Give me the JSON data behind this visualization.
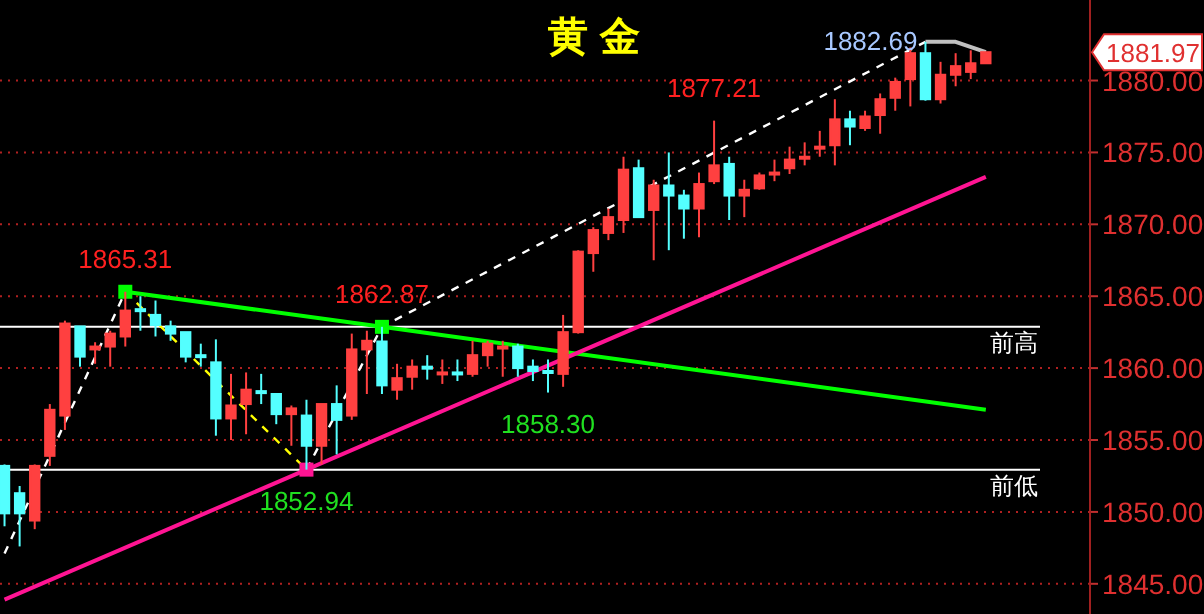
{
  "chart_data": {
    "type": "candlestick",
    "title": "黄金",
    "categories": [
      null,
      null,
      null,
      null,
      null,
      null,
      null,
      null,
      null,
      null,
      null,
      null,
      null,
      null,
      null,
      null,
      null,
      null,
      null,
      null,
      null,
      null,
      null,
      null,
      null,
      null,
      null,
      null,
      null,
      null,
      null,
      null,
      null,
      null,
      null,
      null,
      null,
      null,
      null,
      null,
      null,
      null,
      null,
      null,
      null,
      null,
      null,
      null,
      null,
      null,
      null,
      null,
      null,
      null,
      null,
      null,
      null,
      null,
      null,
      null,
      null,
      null,
      null,
      null,
      null,
      null
    ],
    "ohlc": [
      [
        1853.2,
        1853.3,
        1849.0,
        1849.9
      ],
      [
        1851.3,
        1851.8,
        1847.6,
        1849.9
      ],
      [
        1849.4,
        1853.3,
        1848.8,
        1853.2
      ],
      [
        1853.9,
        1857.5,
        1853.2,
        1857.1
      ],
      [
        1856.7,
        1863.3,
        1855.7,
        1863.1
      ],
      [
        1862.9,
        1862.9,
        1860.1,
        1860.8
      ],
      [
        1861.3,
        1861.8,
        1860.3,
        1861.5
      ],
      [
        1861.5,
        1862.6,
        1860.1,
        1862.4
      ],
      [
        1862.2,
        1865.31,
        1861.5,
        1864.0
      ],
      [
        1864.1,
        1865.0,
        1862.6,
        1864.0
      ],
      [
        1863.7,
        1864.7,
        1862.2,
        1863.0
      ],
      [
        1862.9,
        1863.3,
        1861.9,
        1862.4
      ],
      [
        1862.5,
        1862.5,
        1860.4,
        1860.8
      ],
      [
        1860.9,
        1861.7,
        1860.1,
        1860.8
      ],
      [
        1860.4,
        1862.0,
        1855.3,
        1856.5
      ],
      [
        1856.5,
        1859.6,
        1855.0,
        1857.4
      ],
      [
        1857.5,
        1859.7,
        1855.4,
        1858.5
      ],
      [
        1858.4,
        1859.6,
        1857.5,
        1858.3
      ],
      [
        1858.2,
        1858.2,
        1856.1,
        1856.8
      ],
      [
        1856.8,
        1857.4,
        1854.6,
        1857.2
      ],
      [
        1856.7,
        1857.8,
        1852.94,
        1854.6
      ],
      [
        1854.6,
        1857.5,
        1853.3,
        1857.5
      ],
      [
        1857.5,
        1858.8,
        1854.0,
        1856.4
      ],
      [
        1856.7,
        1862.4,
        1856.4,
        1861.3
      ],
      [
        1861.3,
        1862.6,
        1858.2,
        1861.9
      ],
      [
        1861.85,
        1862.87,
        1858.2,
        1858.8
      ],
      [
        1858.5,
        1860.3,
        1857.8,
        1859.3
      ],
      [
        1859.4,
        1860.6,
        1858.5,
        1860.1
      ],
      [
        1860.1,
        1860.9,
        1859.2,
        1860.0
      ],
      [
        1859.6,
        1860.6,
        1858.9,
        1859.7
      ],
      [
        1859.7,
        1860.6,
        1859.1,
        1859.6
      ],
      [
        1859.6,
        1861.9,
        1859.4,
        1860.9
      ],
      [
        1860.9,
        1861.9,
        1860.1,
        1861.7
      ],
      [
        1861.4,
        1861.9,
        1859.4,
        1861.5
      ],
      [
        1861.5,
        1861.7,
        1859.4,
        1860.0
      ],
      [
        1860.1,
        1860.6,
        1859.1,
        1859.8
      ],
      [
        1859.8,
        1860.6,
        1858.3,
        1859.7
      ],
      [
        1859.6,
        1863.7,
        1858.7,
        1862.5
      ],
      [
        1862.5,
        1868.2,
        1862.4,
        1868.1
      ],
      [
        1868.0,
        1869.8,
        1866.7,
        1869.6
      ],
      [
        1869.4,
        1871.1,
        1868.9,
        1870.5
      ],
      [
        1870.3,
        1874.7,
        1869.4,
        1873.8
      ],
      [
        1873.9,
        1874.5,
        1870.5,
        1870.5
      ],
      [
        1871.0,
        1873.1,
        1867.5,
        1872.7
      ],
      [
        1872.7,
        1875.0,
        1868.2,
        1872.0
      ],
      [
        1872.0,
        1872.4,
        1869.0,
        1871.1
      ],
      [
        1871.1,
        1873.6,
        1869.1,
        1872.8
      ],
      [
        1873.0,
        1877.21,
        1872.8,
        1874.1
      ],
      [
        1874.2,
        1874.7,
        1870.3,
        1872.0
      ],
      [
        1872.0,
        1873.1,
        1870.5,
        1872.4
      ],
      [
        1872.5,
        1873.6,
        1872.4,
        1873.4
      ],
      [
        1873.5,
        1874.5,
        1873.0,
        1873.6
      ],
      [
        1873.9,
        1875.4,
        1873.5,
        1874.5
      ],
      [
        1874.6,
        1875.7,
        1874.1,
        1874.7
      ],
      [
        1875.3,
        1876.5,
        1874.7,
        1875.4
      ],
      [
        1875.5,
        1878.7,
        1874.1,
        1877.3
      ],
      [
        1877.3,
        1877.9,
        1875.5,
        1876.8
      ],
      [
        1876.7,
        1877.9,
        1876.5,
        1877.5
      ],
      [
        1877.6,
        1879.1,
        1876.3,
        1878.7
      ],
      [
        1878.8,
        1880.2,
        1877.9,
        1879.9
      ],
      [
        1880.1,
        1882.3,
        1878.2,
        1881.9
      ],
      [
        1881.9,
        1882.69,
        1878.6,
        1878.7
      ],
      [
        1878.7,
        1881.3,
        1878.4,
        1880.4
      ],
      [
        1880.4,
        1881.9,
        1879.6,
        1881.0
      ],
      [
        1880.6,
        1882.1,
        1880.1,
        1881.2
      ],
      [
        1881.2,
        1881.97,
        1881.2,
        1881.97
      ]
    ],
    "series": [
      {
        "type": "line",
        "color": "#ffffff",
        "line_style": "dashed",
        "values": [
          1847.1,
          null,
          null,
          null,
          null,
          null,
          null,
          null,
          1865.31,
          null,
          null,
          null,
          null,
          null,
          null,
          null,
          null,
          null,
          null,
          null,
          null,
          null,
          null,
          null,
          null,
          null,
          null,
          null,
          null,
          null,
          null,
          null,
          null,
          null,
          null,
          null,
          null,
          null,
          null,
          null,
          null,
          null,
          null,
          null,
          null,
          null,
          null,
          null,
          null,
          null,
          null,
          null,
          null,
          null,
          null,
          null,
          null,
          null,
          null,
          null,
          null,
          null,
          null,
          null,
          null,
          null
        ]
      },
      {
        "type": "line",
        "color": "#ffff00",
        "line_style": "dashed",
        "values": [
          null,
          null,
          null,
          null,
          null,
          null,
          null,
          null,
          1865.31,
          null,
          null,
          null,
          null,
          null,
          null,
          null,
          null,
          null,
          null,
          null,
          1852.94,
          null,
          null,
          null,
          null,
          null,
          null,
          null,
          null,
          null,
          null,
          null,
          null,
          null,
          null,
          null,
          null,
          null,
          null,
          null,
          null,
          null,
          null,
          null,
          null,
          null,
          null,
          null,
          null,
          null,
          null,
          null,
          null,
          null,
          null,
          null,
          null,
          null,
          null,
          null,
          null,
          null,
          null,
          null,
          null,
          null
        ]
      },
      {
        "type": "line",
        "color": "#ffffff",
        "line_style": "dashed",
        "values": [
          null,
          null,
          null,
          null,
          null,
          null,
          null,
          null,
          null,
          null,
          null,
          null,
          null,
          null,
          null,
          null,
          null,
          null,
          null,
          null,
          1852.94,
          null,
          null,
          null,
          null,
          1862.87,
          null,
          null,
          null,
          null,
          null,
          null,
          null,
          null,
          null,
          null,
          null,
          null,
          null,
          null,
          null,
          null,
          null,
          null,
          null,
          null,
          null,
          null,
          null,
          null,
          null,
          null,
          null,
          null,
          null,
          null,
          null,
          null,
          null,
          null,
          null,
          1882.69,
          null,
          null,
          null,
          null
        ]
      },
      {
        "type": "line",
        "color": "#c0c0c0",
        "line_style": "solid",
        "values": [
          null,
          null,
          null,
          null,
          null,
          null,
          null,
          null,
          null,
          null,
          null,
          null,
          null,
          null,
          null,
          null,
          null,
          null,
          null,
          null,
          null,
          null,
          null,
          null,
          null,
          null,
          null,
          null,
          null,
          null,
          null,
          null,
          null,
          null,
          null,
          null,
          null,
          null,
          null,
          null,
          null,
          null,
          null,
          null,
          null,
          null,
          null,
          null,
          null,
          null,
          null,
          null,
          null,
          null,
          null,
          null,
          null,
          null,
          null,
          null,
          null,
          1882.69,
          null,
          1882.69,
          null,
          1881.97
        ]
      },
      {
        "type": "line",
        "color": "#00ff00",
        "line_style": "solid",
        "values": [
          null,
          null,
          null,
          null,
          null,
          null,
          null,
          null,
          1865.31,
          null,
          null,
          null,
          null,
          null,
          null,
          null,
          null,
          null,
          null,
          null,
          null,
          null,
          null,
          null,
          null,
          1862.87,
          null,
          null,
          null,
          null,
          null,
          null,
          null,
          null,
          null,
          null,
          null,
          null,
          null,
          null,
          null,
          null,
          null,
          null,
          null,
          null,
          null,
          null,
          null,
          null,
          null,
          null,
          null,
          null,
          null,
          null,
          null,
          null,
          null,
          null,
          null,
          null,
          null,
          null,
          null,
          1857.1
        ]
      },
      {
        "type": "line",
        "color": "#ff1493",
        "line_style": "solid",
        "values": [
          1843.9,
          null,
          null,
          null,
          null,
          null,
          null,
          null,
          null,
          null,
          null,
          null,
          null,
          null,
          null,
          null,
          null,
          null,
          null,
          null,
          1852.94,
          null,
          null,
          null,
          null,
          null,
          null,
          null,
          null,
          null,
          null,
          null,
          null,
          null,
          null,
          null,
          null,
          null,
          null,
          null,
          null,
          null,
          null,
          null,
          null,
          null,
          null,
          null,
          null,
          null,
          null,
          null,
          null,
          null,
          null,
          null,
          null,
          null,
          null,
          null,
          null,
          null,
          null,
          null,
          null,
          1873.3
        ]
      }
    ],
    "ylim": [
      1842.9,
      1885.6
    ],
    "yticks": [
      {
        "value": 1845,
        "label": "1845.00"
      },
      {
        "value": 1850,
        "label": "1850.00"
      },
      {
        "value": 1855,
        "label": "1855.00"
      },
      {
        "value": 1860,
        "label": "1860.00"
      },
      {
        "value": 1865,
        "label": "1865.00"
      },
      {
        "value": 1870,
        "label": "1870.00"
      },
      {
        "value": 1875,
        "label": "1875.00"
      },
      {
        "value": 1880,
        "label": "1880.00"
      }
    ],
    "grid": "y",
    "ref_lines": [
      {
        "axis": "y",
        "value": 1862.87,
        "label": "前高",
        "color": "#ffffff"
      },
      {
        "axis": "y",
        "value": 1852.94,
        "label": "前低",
        "color": "#ffffff"
      }
    ],
    "annotations": [
      {
        "text": "1865.31",
        "y": 1865.31
      },
      {
        "text": "1862.87",
        "y": 1862.87
      },
      {
        "text": "1877.21",
        "y": 1877.21
      },
      "1882.69",
      {
        "text": "1852.94",
        "y": 1852.94
      },
      {
        "text": "1858.30",
        "y": 1858.3
      },
      "1881.97"
    ]
  }
}
